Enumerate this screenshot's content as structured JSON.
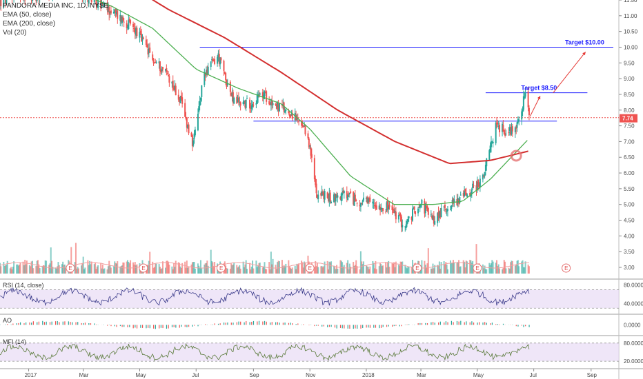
{
  "header": {
    "symbol_title": "PANDORA MEDIA INC, 1D, NYSE",
    "ema50_label": "EMA (50, close)",
    "ema200_label": "EMA (200, close)",
    "vol_label": "Vol (20)"
  },
  "price_tag": "7.74",
  "colors": {
    "up": "#26a69a",
    "down": "#ef5350",
    "ema50": "#4caf50",
    "ema200": "#d32f2f",
    "annotation": "#1a1aff",
    "arrow": "#e53935",
    "rsi": "#3a3a8a",
    "mfi": "#5a7a3a",
    "band": "#e8dcf5"
  },
  "chart_data": [
    {
      "type": "line",
      "name": "price",
      "x": [
        "2016-12-01",
        "2016-12-20",
        "2017-01-10",
        "2017-02-01",
        "2017-02-20",
        "2017-03-10",
        "2017-03-28",
        "2017-04-12",
        "2017-04-28",
        "2017-05-15",
        "2017-05-30",
        "2017-06-14",
        "2017-06-28",
        "2017-07-10",
        "2017-07-25",
        "2017-08-10",
        "2017-08-28",
        "2017-09-12",
        "2017-09-28",
        "2017-10-12",
        "2017-10-30",
        "2017-11-08",
        "2017-11-22",
        "2017-12-08",
        "2017-12-22",
        "2018-01-10",
        "2018-01-26",
        "2018-02-12",
        "2018-02-28",
        "2018-03-14",
        "2018-03-28",
        "2018-04-12",
        "2018-04-26",
        "2018-05-07",
        "2018-05-21",
        "2018-06-04",
        "2018-06-14",
        "2018-06-22",
        "2018-06-26"
      ],
      "y": [
        11.4,
        11.7,
        11.6,
        11.8,
        11.9,
        11.5,
        11.2,
        10.9,
        10.5,
        9.6,
        9.2,
        8.3,
        6.9,
        9.2,
        9.7,
        8.3,
        8.2,
        8.5,
        8.1,
        7.9,
        7.15,
        5.4,
        5.2,
        5.3,
        5.1,
        5.0,
        4.9,
        4.3,
        5.1,
        4.5,
        4.9,
        5.2,
        5.5,
        5.8,
        7.5,
        7.3,
        7.6,
        8.5,
        7.74
      ],
      "xlim": [
        "2016-12-01",
        "2018-10-01"
      ],
      "ylim": [
        2.8,
        12.0
      ],
      "yticks": [
        3.0,
        3.5,
        4.0,
        4.5,
        5.0,
        5.5,
        6.0,
        6.5,
        7.0,
        7.5,
        8.0,
        8.5,
        9.0,
        9.5,
        10.0,
        10.5,
        11.0,
        11.5
      ],
      "ytick_labels": [
        "3.00",
        "3.50",
        "4.00",
        "4.50",
        "5.00",
        "5.50",
        "6.00",
        "6.50",
        "7.00",
        "7.50",
        "8.00",
        "8.50",
        "9.00",
        "9.50",
        "10.00",
        "10.50",
        "11.00",
        "11.50"
      ],
      "xtick_labels": [
        "2017",
        "Mar",
        "May",
        "Jul",
        "Sep",
        "Nov",
        "2018",
        "Mar",
        "May",
        "Jul",
        "Sep"
      ],
      "xtick_dates": [
        "2017-01-01",
        "2017-03-01",
        "2017-05-01",
        "2017-07-01",
        "2017-09-01",
        "2017-11-01",
        "2018-01-01",
        "2018-03-01",
        "2018-05-01",
        "2018-07-01",
        "2018-09-01"
      ],
      "series": [
        {
          "name": "EMA (50, close)",
          "x": [
            "2016-12-01",
            "2017-02-01",
            "2017-04-01",
            "2017-05-15",
            "2017-07-01",
            "2017-08-15",
            "2017-10-01",
            "2017-11-01",
            "2017-12-15",
            "2018-01-31",
            "2018-03-15",
            "2018-04-15",
            "2018-05-15",
            "2018-06-26"
          ],
          "y": [
            12.2,
            12.0,
            11.3,
            10.6,
            9.3,
            8.7,
            8.2,
            7.4,
            5.9,
            5.0,
            5.0,
            5.1,
            5.8,
            7.1
          ]
        },
        {
          "name": "EMA (200, close)",
          "x": [
            "2017-04-01",
            "2017-06-01",
            "2017-08-01",
            "2017-10-01",
            "2017-12-01",
            "2018-02-01",
            "2018-04-01",
            "2018-05-15",
            "2018-06-26"
          ],
          "y": [
            12.3,
            11.2,
            10.3,
            9.2,
            8.0,
            7.0,
            6.3,
            6.4,
            6.7
          ]
        }
      ],
      "horizontal_lines": [
        {
          "y": 10.0,
          "from": "2017-07-05",
          "to": "2018-09-25",
          "label": "Target $10.00"
        },
        {
          "y": 8.55,
          "from": "2018-05-10",
          "to": "2018-08-28",
          "label": "Target $8.50"
        },
        {
          "y": 7.65,
          "from": "2017-09-01",
          "to": "2018-07-26",
          "label": ""
        },
        {
          "y": 7.76,
          "from": "2016-12-01",
          "to": "2018-10-01",
          "label": "",
          "dashed": true
        }
      ],
      "earnings": [
        "2017-02-15",
        "2017-05-05",
        "2017-07-28",
        "2017-11-01",
        "2018-02-25",
        "2018-05-01",
        "2018-08-05"
      ]
    },
    {
      "type": "bar",
      "name": "volume",
      "note": "volume bars at bottom of price pane with spikes near earnings dates",
      "ylim": [
        0,
        1
      ]
    },
    {
      "type": "line",
      "title": "RSI (14, close)",
      "ylim": [
        20,
        90
      ],
      "yticks": [
        40,
        80
      ],
      "ytick_labels": [
        "40.0000",
        "80.0000"
      ],
      "band": [
        30,
        70
      ]
    },
    {
      "type": "bar",
      "title": "AO",
      "yticks": [
        0
      ],
      "ytick_labels": [
        "0.0000"
      ]
    },
    {
      "type": "line",
      "title": "MFI (14)",
      "ylim": [
        0,
        100
      ],
      "yticks": [
        20,
        80
      ],
      "ytick_labels": [
        "20.0000",
        "80.0000"
      ],
      "band": [
        20,
        80
      ]
    }
  ]
}
